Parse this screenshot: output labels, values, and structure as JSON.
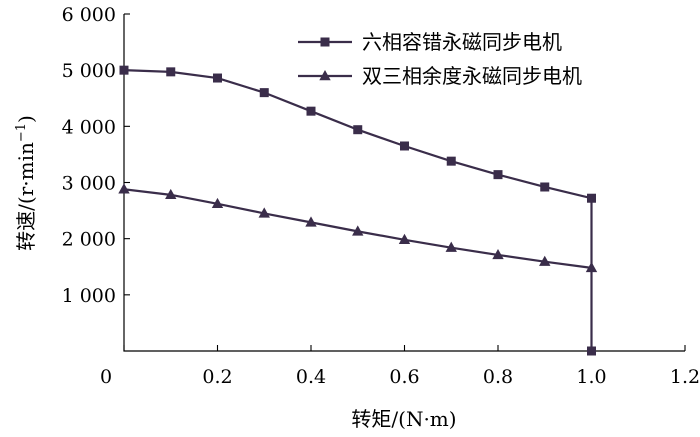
{
  "chart_data": {
    "type": "line",
    "xlabel": "转矩/(N·m)",
    "ylabel_main": "转速/(r·min",
    "ylabel_sup": "−1",
    "ylabel_close": ")",
    "xlim": [
      0,
      1.2
    ],
    "ylim": [
      0,
      6000
    ],
    "x_ticks": [
      0,
      0.2,
      0.4,
      0.6,
      0.8,
      1.0,
      1.2
    ],
    "x_tick_labels": [
      "0",
      "0.2",
      "0.4",
      "0.6",
      "0.8",
      "1.0",
      "1.2"
    ],
    "y_ticks": [
      1000,
      2000,
      3000,
      4000,
      5000,
      6000
    ],
    "y_tick_labels": [
      "1 000",
      "2 000",
      "3 000",
      "4 000",
      "5 000",
      "6 000"
    ],
    "grid": false,
    "legend_position": "top-right",
    "series": [
      {
        "name": "六相容错永磁同步电机",
        "marker": "square",
        "color": "#3a2d4a",
        "x": [
          0.0,
          0.1,
          0.2,
          0.3,
          0.4,
          0.5,
          0.6,
          0.7,
          0.8,
          0.9,
          1.0,
          1.0
        ],
        "y": [
          5000,
          4970,
          4860,
          4600,
          4270,
          3940,
          3650,
          3380,
          3140,
          2920,
          2720,
          0
        ]
      },
      {
        "name": "双三相余度永磁同步电机",
        "marker": "triangle",
        "color": "#3a2d4a",
        "x": [
          0.0,
          0.1,
          0.2,
          0.3,
          0.4,
          0.5,
          0.6,
          0.7,
          0.8,
          0.9,
          1.0
        ],
        "y": [
          2880,
          2780,
          2620,
          2450,
          2290,
          2130,
          1980,
          1840,
          1710,
          1590,
          1480
        ]
      }
    ]
  }
}
